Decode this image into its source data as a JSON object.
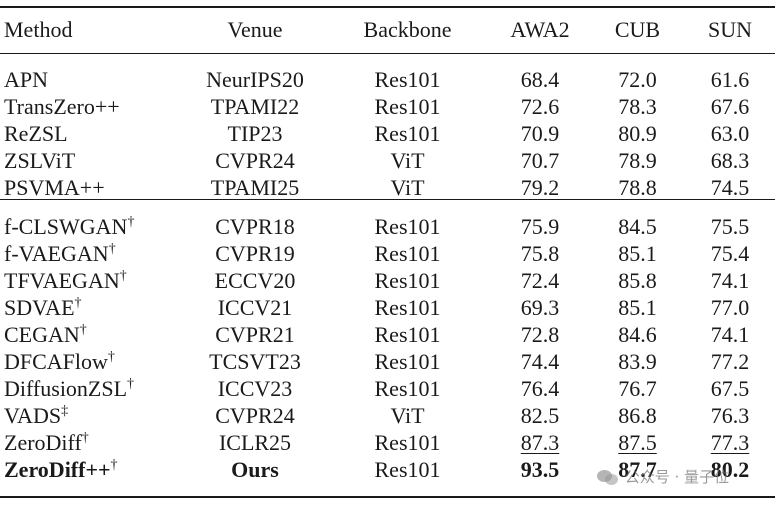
{
  "table": {
    "headers": [
      "Method",
      "Venue",
      "Backbone",
      "AWA2",
      "CUB",
      "SUN"
    ],
    "group1": [
      {
        "method": "APN",
        "mark": "",
        "venue": "NeurIPS20",
        "backbone": "Res101",
        "awa2": "68.4",
        "cub": "72.0",
        "sun": "61.6"
      },
      {
        "method": "TransZero++",
        "mark": "",
        "venue": "TPAMI22",
        "backbone": "Res101",
        "awa2": "72.6",
        "cub": "78.3",
        "sun": "67.6"
      },
      {
        "method": "ReZSL",
        "mark": "",
        "venue": "TIP23",
        "backbone": "Res101",
        "awa2": "70.9",
        "cub": "80.9",
        "sun": "63.0"
      },
      {
        "method": "ZSLViT",
        "mark": "",
        "venue": "CVPR24",
        "backbone": "ViT",
        "awa2": "70.7",
        "cub": "78.9",
        "sun": "68.3"
      },
      {
        "method": "PSVMA++",
        "mark": "",
        "venue": "TPAMI25",
        "backbone": "ViT",
        "awa2": "79.2",
        "cub": "78.8",
        "sun": "74.5"
      }
    ],
    "group2": [
      {
        "method": "f-CLSWGAN",
        "mark": "†",
        "venue": "CVPR18",
        "backbone": "Res101",
        "awa2": "75.9",
        "cub": "84.5",
        "sun": "75.5"
      },
      {
        "method": "f-VAEGAN",
        "mark": "†",
        "venue": "CVPR19",
        "backbone": "Res101",
        "awa2": "75.8",
        "cub": "85.1",
        "sun": "75.4"
      },
      {
        "method": "TFVAEGAN",
        "mark": "†",
        "venue": "ECCV20",
        "backbone": "Res101",
        "awa2": "72.4",
        "cub": "85.8",
        "sun": "74.1"
      },
      {
        "method": "SDVAE",
        "mark": "†",
        "venue": "ICCV21",
        "backbone": "Res101",
        "awa2": "69.3",
        "cub": "85.1",
        "sun": "77.0"
      },
      {
        "method": "CEGAN",
        "mark": "†",
        "venue": "CVPR21",
        "backbone": "Res101",
        "awa2": "72.8",
        "cub": "84.6",
        "sun": "74.1"
      },
      {
        "method": "DFCAFlow",
        "mark": "†",
        "venue": "TCSVT23",
        "backbone": "Res101",
        "awa2": "74.4",
        "cub": "83.9",
        "sun": "77.2"
      },
      {
        "method": "DiffusionZSL",
        "mark": "†",
        "venue": "ICCV23",
        "backbone": "Res101",
        "awa2": "76.4",
        "cub": "76.7",
        "sun": "67.5"
      },
      {
        "method": "VADS",
        "mark": "‡",
        "venue": "CVPR24",
        "backbone": "ViT",
        "awa2": "82.5",
        "cub": "86.8",
        "sun": "76.3"
      },
      {
        "method": "ZeroDiff",
        "mark": "†",
        "venue": "ICLR25",
        "backbone": "Res101",
        "awa2": "87.3",
        "cub": "87.5",
        "sun": "77.3"
      }
    ],
    "ours": {
      "method": "ZeroDiff++",
      "mark": "†",
      "venue": "Ours",
      "backbone": "Res101",
      "awa2": "93.5",
      "cub": "87.7",
      "sun": "80.2"
    }
  },
  "watermark": {
    "text": "公众号 · 量子位"
  }
}
